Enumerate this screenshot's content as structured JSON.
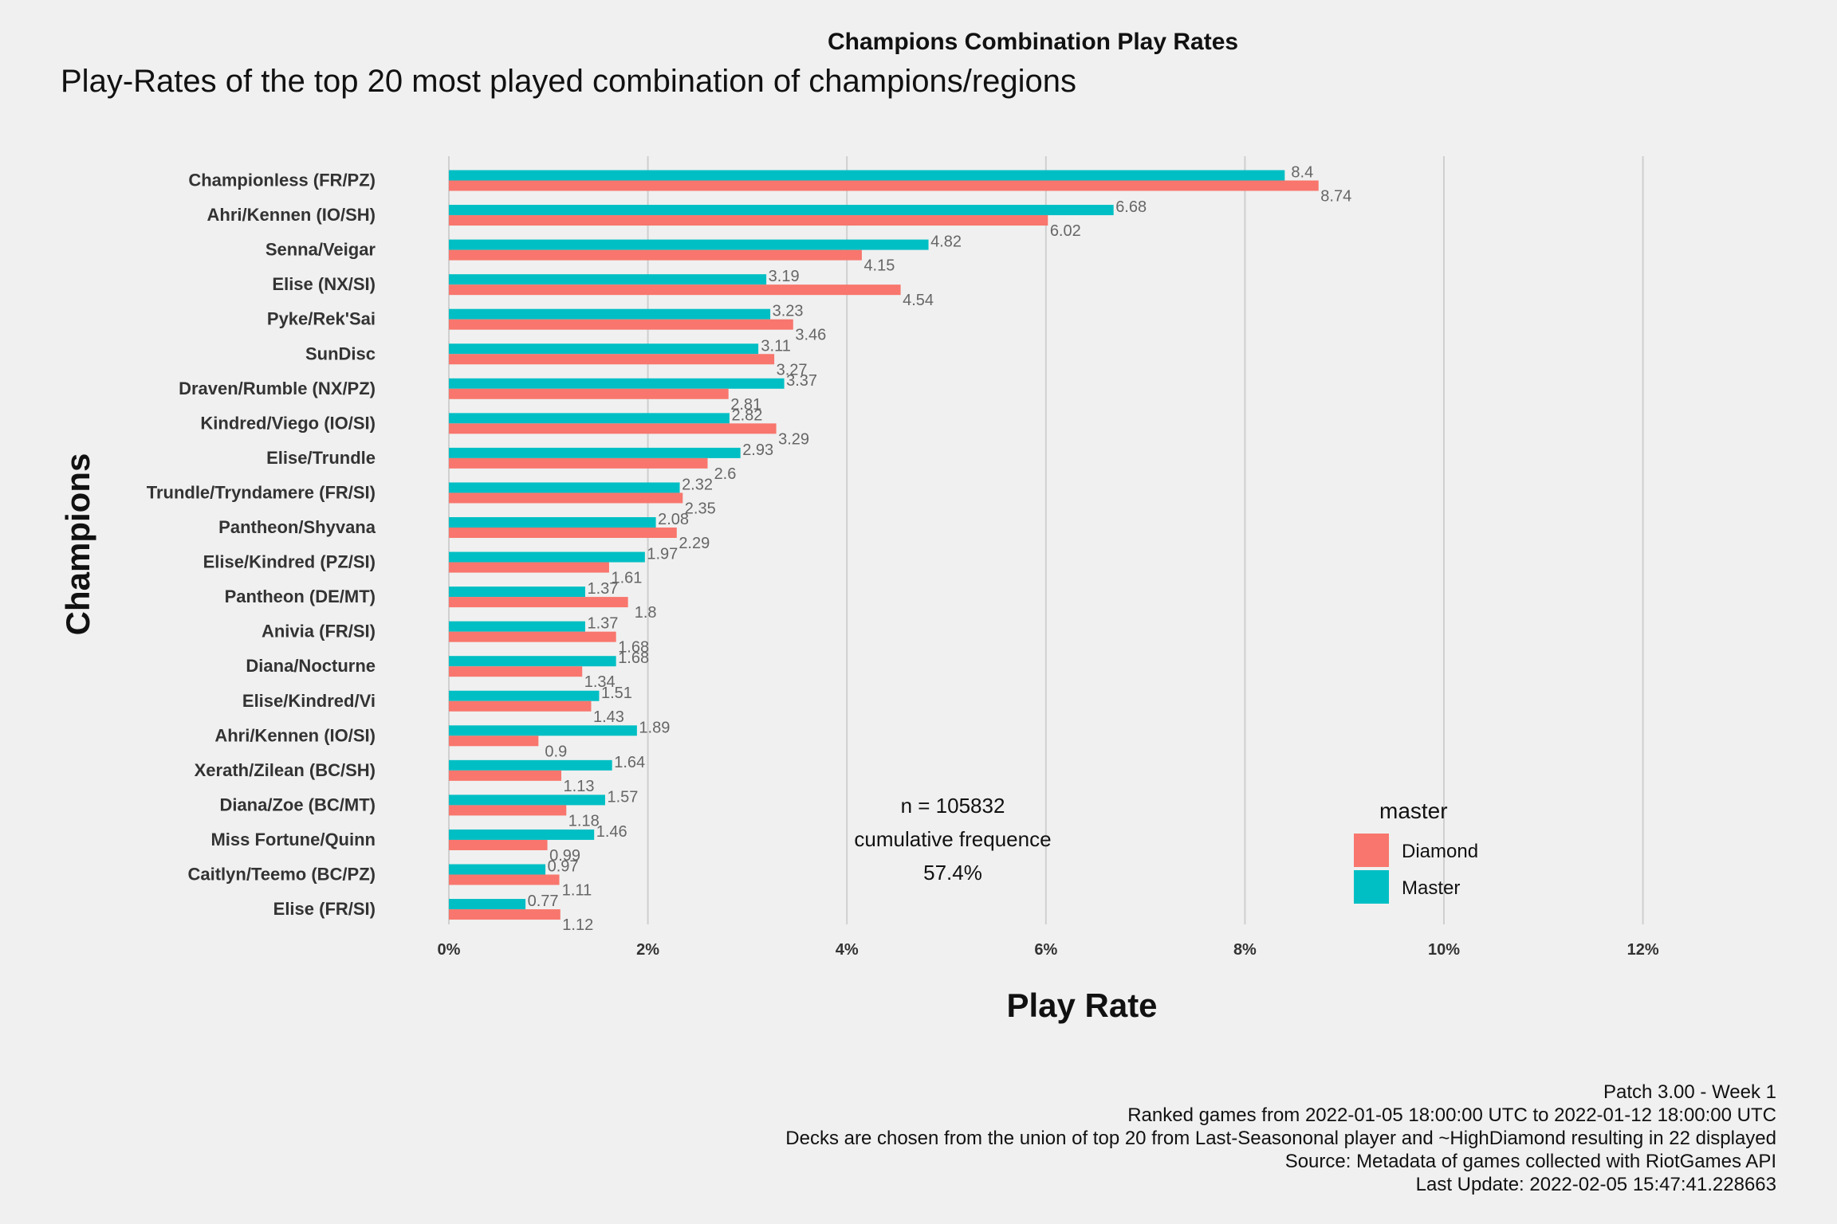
{
  "header": {
    "title": "Champions Combination Play Rates"
  },
  "chart_data": {
    "type": "bar",
    "orientation": "horizontal",
    "title": "Play-Rates of the top 20 most played combination of champions/regions",
    "xlabel": "Play Rate",
    "ylabel": "Champions",
    "xlim": [
      0,
      12
    ],
    "x_ticks": [
      "0%",
      "2%",
      "4%",
      "6%",
      "8%",
      "10%",
      "12%"
    ],
    "grid": "vertical major",
    "categories": [
      "Championless (FR/PZ)",
      "Ahri/Kennen (IO/SH)",
      "Senna/Veigar",
      "Elise (NX/SI)",
      "Pyke/Rek'Sai",
      "SunDisc",
      "Draven/Rumble (NX/PZ)",
      "Kindred/Viego (IO/SI)",
      "Elise/Trundle",
      "Trundle/Tryndamere (FR/SI)",
      "Pantheon/Shyvana",
      "Elise/Kindred (PZ/SI)",
      "Pantheon (DE/MT)",
      "Anivia (FR/SI)",
      "Diana/Nocturne",
      "Elise/Kindred/Vi",
      "Ahri/Kennen (IO/SI)",
      "Xerath/Zilean (BC/SH)",
      "Diana/Zoe (BC/MT)",
      "Miss Fortune/Quinn",
      "Caitlyn/Teemo (BC/PZ)",
      "Elise (FR/SI)"
    ],
    "series": [
      {
        "name": "Master",
        "color": "#00bfc4",
        "values": [
          8.4,
          6.68,
          4.82,
          3.19,
          3.23,
          3.11,
          3.37,
          2.82,
          2.93,
          2.32,
          2.08,
          1.97,
          1.37,
          1.37,
          1.68,
          1.51,
          1.89,
          1.64,
          1.57,
          1.46,
          0.97,
          0.77
        ]
      },
      {
        "name": "Diamond",
        "color": "#f8766d",
        "values": [
          8.74,
          6.02,
          4.15,
          4.54,
          3.46,
          3.27,
          2.81,
          3.29,
          2.6,
          2.35,
          2.29,
          1.61,
          1.8,
          1.68,
          1.34,
          1.43,
          0.9,
          1.13,
          1.18,
          0.99,
          1.11,
          1.12
        ]
      }
    ],
    "legend": {
      "title": "master",
      "position": "bottom-right",
      "entries": [
        {
          "label": "Diamond",
          "color": "#f8766d"
        },
        {
          "label": "Master",
          "color": "#00bfc4"
        }
      ]
    },
    "annotation": [
      "n = 105832",
      "cumulative frequence",
      "57.4%"
    ]
  },
  "footer": {
    "lines": [
      "Patch 3.00 - Week 1",
      "Ranked games from 2022-01-05 18:00:00 UTC to 2022-01-12 18:00:00 UTC",
      "Decks are chosen from the union of top 20 from Last-Seasononal player and ~HighDiamond resulting in 22 displayed",
      "Source: Metadata of games collected with RiotGames API",
      "Last Update: 2022-02-05 15:47:41.228663"
    ]
  }
}
